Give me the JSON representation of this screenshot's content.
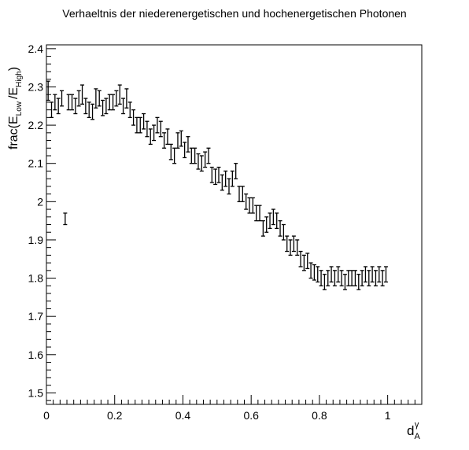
{
  "chart_data": {
    "type": "scatter",
    "title": "Verhaeltnis der niederenergetischen und hochenergetischen Photonen",
    "xlabel": {
      "base": "d",
      "sub": "A",
      "sup": "γ"
    },
    "ylabel": {
      "prefix": "frac(E",
      "sub1": "Low",
      "middle": "/E",
      "sub2": "High",
      "suffix": ")"
    },
    "xlim": [
      0,
      1.1
    ],
    "ylim": [
      1.47,
      2.41
    ],
    "xticks": [
      0,
      0.2,
      0.4,
      0.6,
      0.8,
      1
    ],
    "xtick_labels": [
      "0",
      "0.2",
      "0.4",
      "0.6",
      "0.8",
      "1"
    ],
    "yticks": [
      1.5,
      1.6,
      1.7,
      1.8,
      1.9,
      2.0,
      2.1,
      2.2,
      2.3,
      2.4
    ],
    "ytick_labels": [
      "1.5",
      "1.6",
      "1.7",
      "1.8",
      "1.9",
      "2",
      "2.1",
      "2.2",
      "2.3",
      "2.4"
    ],
    "grid": false,
    "legend": "none",
    "series": [
      {
        "x": [
          0.005,
          0.015,
          0.025,
          0.035,
          0.045,
          0.055,
          0.065,
          0.075,
          0.085,
          0.095,
          0.105,
          0.115,
          0.125,
          0.135,
          0.145,
          0.155,
          0.165,
          0.175,
          0.185,
          0.195,
          0.205,
          0.215,
          0.225,
          0.235,
          0.245,
          0.255,
          0.265,
          0.275,
          0.285,
          0.295,
          0.305,
          0.315,
          0.325,
          0.335,
          0.345,
          0.355,
          0.365,
          0.375,
          0.385,
          0.395,
          0.405,
          0.415,
          0.425,
          0.435,
          0.445,
          0.455,
          0.465,
          0.475,
          0.485,
          0.495,
          0.505,
          0.515,
          0.525,
          0.535,
          0.545,
          0.555,
          0.565,
          0.575,
          0.585,
          0.595,
          0.605,
          0.615,
          0.625,
          0.635,
          0.645,
          0.655,
          0.665,
          0.675,
          0.685,
          0.695,
          0.705,
          0.715,
          0.725,
          0.735,
          0.745,
          0.755,
          0.765,
          0.775,
          0.785,
          0.795,
          0.805,
          0.815,
          0.825,
          0.835,
          0.845,
          0.855,
          0.865,
          0.875,
          0.885,
          0.895,
          0.905,
          0.915,
          0.925,
          0.935,
          0.945,
          0.955,
          0.965,
          0.975,
          0.985,
          0.995
        ],
        "y": [
          2.29,
          2.24,
          2.26,
          2.25,
          2.27,
          1.955,
          2.26,
          2.26,
          2.25,
          2.27,
          2.28,
          2.25,
          2.24,
          2.235,
          2.27,
          2.27,
          2.245,
          2.25,
          2.26,
          2.26,
          2.27,
          2.28,
          2.25,
          2.27,
          2.24,
          2.22,
          2.2,
          2.2,
          2.21,
          2.19,
          2.17,
          2.18,
          2.2,
          2.19,
          2.16,
          2.17,
          2.13,
          2.12,
          2.16,
          2.165,
          2.135,
          2.15,
          2.12,
          2.12,
          2.105,
          2.1,
          2.11,
          2.12,
          2.07,
          2.065,
          2.07,
          2.05,
          2.06,
          2.04,
          2.06,
          2.08,
          2.02,
          2.02,
          2.0,
          1.99,
          1.99,
          1.97,
          1.97,
          1.93,
          1.94,
          1.95,
          1.96,
          1.95,
          1.93,
          1.92,
          1.89,
          1.88,
          1.89,
          1.88,
          1.85,
          1.84,
          1.845,
          1.82,
          1.815,
          1.81,
          1.8,
          1.79,
          1.8,
          1.81,
          1.8,
          1.81,
          1.8,
          1.79,
          1.8,
          1.8,
          1.8,
          1.79,
          1.8,
          1.81,
          1.8,
          1.81,
          1.8,
          1.81,
          1.8,
          1.81
        ],
        "err": [
          0.025,
          0.02,
          0.02,
          0.02,
          0.02,
          0.015,
          0.02,
          0.02,
          0.02,
          0.02,
          0.025,
          0.02,
          0.02,
          0.02,
          0.025,
          0.02,
          0.02,
          0.02,
          0.02,
          0.02,
          0.02,
          0.025,
          0.02,
          0.025,
          0.02,
          0.02,
          0.02,
          0.02,
          0.02,
          0.02,
          0.02,
          0.02,
          0.02,
          0.02,
          0.02,
          0.02,
          0.02,
          0.02,
          0.02,
          0.02,
          0.02,
          0.02,
          0.02,
          0.02,
          0.02,
          0.02,
          0.02,
          0.02,
          0.02,
          0.02,
          0.02,
          0.02,
          0.02,
          0.02,
          0.02,
          0.02,
          0.02,
          0.02,
          0.02,
          0.02,
          0.02,
          0.02,
          0.02,
          0.02,
          0.02,
          0.02,
          0.02,
          0.02,
          0.02,
          0.02,
          0.02,
          0.02,
          0.02,
          0.02,
          0.02,
          0.02,
          0.02,
          0.02,
          0.02,
          0.02,
          0.02,
          0.02,
          0.02,
          0.02,
          0.02,
          0.02,
          0.02,
          0.02,
          0.02,
          0.02,
          0.02,
          0.02,
          0.02,
          0.02,
          0.02,
          0.02,
          0.02,
          0.02,
          0.02,
          0.02
        ]
      }
    ]
  }
}
